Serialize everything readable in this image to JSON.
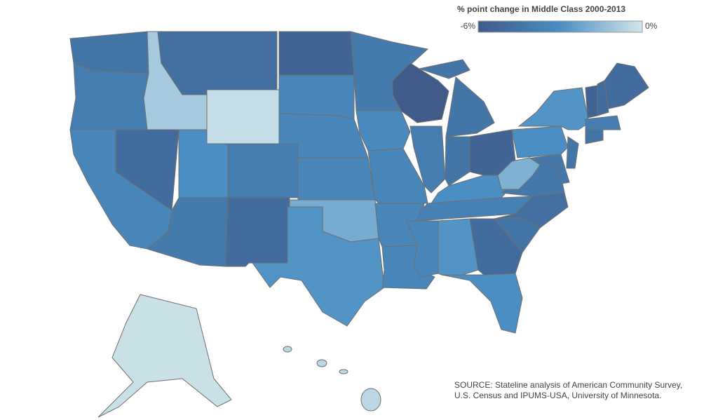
{
  "chart_data": {
    "type": "choropleth",
    "legend_title": "% point change in Middle Class 2000-2013",
    "colorscale": [
      "#3e5b8a",
      "#4a8ec4",
      "#d2e6ea"
    ],
    "clim": [
      -6,
      0
    ],
    "cticks": [
      {
        "value": -6,
        "label": "-6%"
      },
      {
        "value": 0,
        "label": "0%"
      }
    ],
    "values": [
      -4.5,
      -4,
      -3.5,
      -5,
      -1,
      -4.8,
      -0.3,
      -3,
      -4,
      -4.2,
      -5,
      -5.5,
      -3.5,
      -3.5,
      -3.5,
      -2,
      -2.8,
      -4.2,
      -3.3,
      -3.5,
      -3.5,
      -3.5,
      -6,
      -4,
      -4.5,
      -4.5,
      -5.5,
      -3,
      -3.8,
      -3.5,
      -2.8,
      -5,
      -3,
      -4.5,
      -4.8,
      -4.3,
      -1.8,
      -3,
      -2.8,
      -4.3,
      -4.5,
      -4.5,
      -4,
      -5.5,
      -5,
      -5,
      -0.2,
      -0.5
    ],
    "source": [
      "SOURCE: Stateline analysis of American Community Survey,",
      "U.S. Census and IPUMS-USA, University of Minnesota."
    ]
  }
}
